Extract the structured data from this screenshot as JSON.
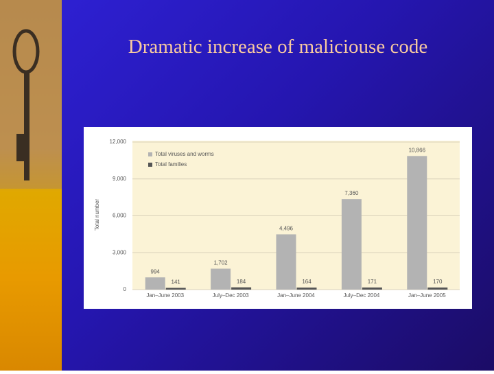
{
  "title": "Dramatic increase of maliciouse code",
  "chart_data": {
    "type": "bar",
    "y_label": "Total number",
    "categories": [
      "Jan–June 2003",
      "July–Dec 2003",
      "Jan–June 2004",
      "July–Dec 2004",
      "Jan–June 2005"
    ],
    "series": [
      {
        "name": "Total viruses and worms",
        "color": "#b3b3b3",
        "values": [
          994,
          1702,
          4496,
          7360,
          10866
        ],
        "value_labels": [
          "994",
          "1,702",
          "4,496",
          "7,360",
          "10,866"
        ]
      },
      {
        "name": "Total families",
        "color": "#555555",
        "values": [
          141,
          184,
          164,
          171,
          170
        ]
      }
    ],
    "ylim": [
      0,
      12000
    ],
    "yticks": [
      0,
      {
        "value": 3000,
        "label": "3,000"
      },
      {
        "value": 6000,
        "label": "6,000"
      },
      {
        "value": 9000,
        "label": "9,000"
      },
      {
        "value": 12000,
        "label": "12,000"
      }
    ],
    "grid": true,
    "legend": "upper left"
  }
}
